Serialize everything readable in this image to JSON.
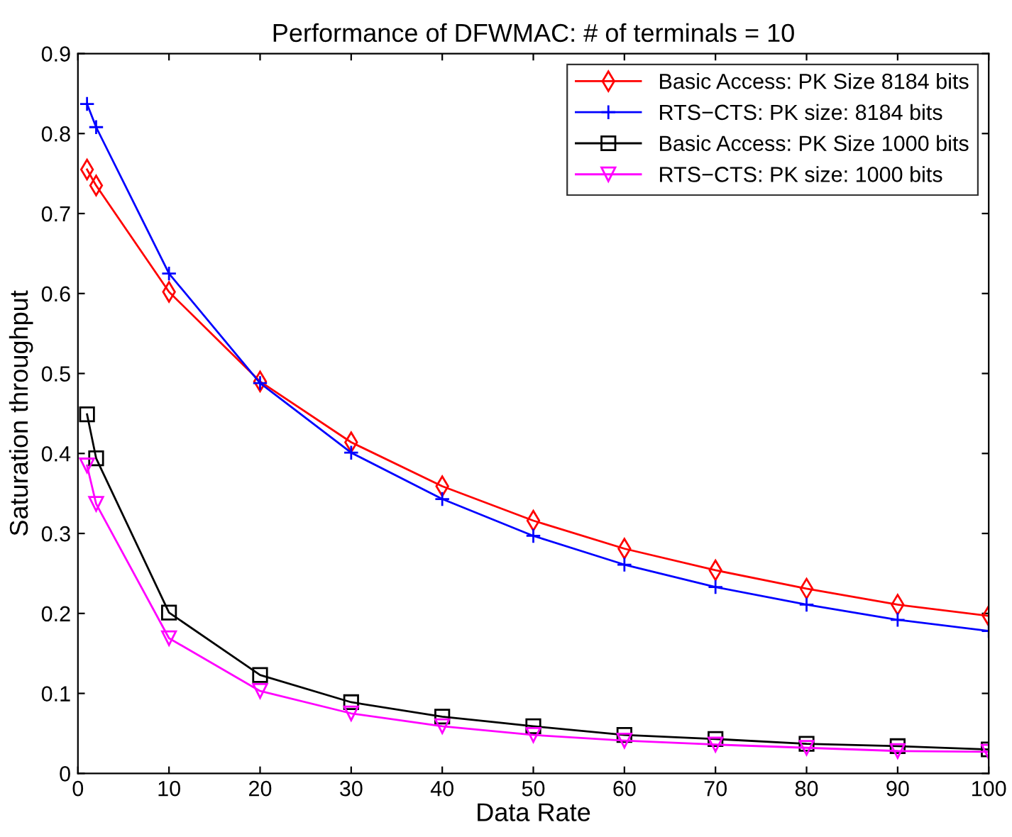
{
  "chart_data": {
    "type": "line",
    "title": "Performance of DFWMAC: # of terminals = 10",
    "xlabel": "Data Rate",
    "ylabel": "Saturation throughput",
    "x": [
      1,
      2,
      10,
      20,
      30,
      40,
      50,
      60,
      70,
      80,
      90,
      100
    ],
    "series": [
      {
        "name": "Basic Access: PK Size 8184 bits",
        "color": "#ff0000",
        "marker": "diamond",
        "values": [
          0.755,
          0.735,
          0.602,
          0.49,
          0.414,
          0.359,
          0.316,
          0.281,
          0.254,
          0.231,
          0.211,
          0.197
        ]
      },
      {
        "name": "RTS−CTS: PK size: 8184 bits",
        "color": "#0000ff",
        "marker": "cross",
        "values": [
          0.837,
          0.808,
          0.625,
          0.488,
          0.401,
          0.343,
          0.297,
          0.261,
          0.233,
          0.211,
          0.192,
          0.178
        ]
      },
      {
        "name": "Basic Access: PK Size 1000 bits",
        "color": "#000000",
        "marker": "square",
        "values": [
          0.449,
          0.394,
          0.201,
          0.123,
          0.089,
          0.071,
          0.059,
          0.048,
          0.043,
          0.037,
          0.034,
          0.03
        ]
      },
      {
        "name": "RTS−CTS: PK size: 1000 bits",
        "color": "#ff00ff",
        "marker": "triangle",
        "values": [
          0.385,
          0.337,
          0.169,
          0.103,
          0.075,
          0.059,
          0.048,
          0.041,
          0.036,
          0.032,
          0.028,
          0.027
        ]
      }
    ],
    "xlim": [
      0,
      100
    ],
    "xticks": [
      0,
      10,
      20,
      30,
      40,
      50,
      60,
      70,
      80,
      90,
      100
    ],
    "ylim": [
      0,
      0.9
    ],
    "yticks": [
      0,
      0.1,
      0.2,
      0.3,
      0.4,
      0.5,
      0.6,
      0.7,
      0.8,
      0.9
    ],
    "grid": false,
    "legend": "top right",
    "line_style": "solid"
  }
}
